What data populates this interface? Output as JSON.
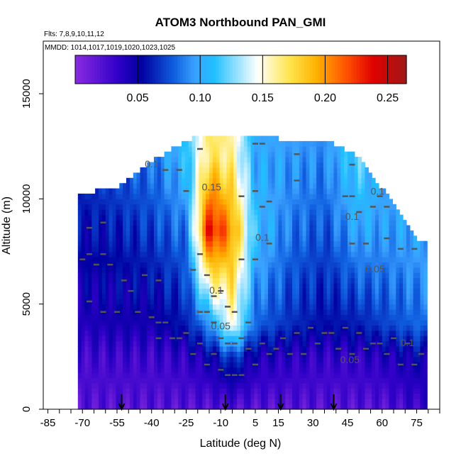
{
  "chart_data": {
    "type": "heatmap",
    "title": "ATOM3 Northbound PAN_GMI",
    "flights_label": "Flts: 7,8,9,10,11,12",
    "dates_label": "MMDD: 1014,1017,1019,1020,1023,1025",
    "xlabel": "Latitude (deg N)",
    "ylabel": "Altitude (m)",
    "xlim": [
      -87,
      85
    ],
    "ylim": [
      0,
      17500
    ],
    "x_ticks": [
      "-85",
      "-70",
      "-55",
      "-40",
      "-25",
      "-10",
      "5",
      "15",
      "30",
      "45",
      "60",
      "75"
    ],
    "y_ticks": [
      "0",
      "5000",
      "10000",
      "15000"
    ],
    "colorbar": {
      "min": 0.0,
      "max": 0.265,
      "ticks": [
        "0.05",
        "0.10",
        "0.15",
        "0.20",
        "0.25"
      ],
      "tick_values": [
        0.05,
        0.1,
        0.15,
        0.2,
        0.25
      ],
      "colors": [
        "#8a2be2",
        "#3000c8",
        "#0000a0",
        "#1060e0",
        "#3aa0ff",
        "#20c0ff",
        "#ffffff",
        "#ffe44a",
        "#ffb000",
        "#ff5000",
        "#e00000",
        "#a01818"
      ],
      "color_positions": [
        0.0,
        0.13,
        0.2,
        0.3,
        0.36,
        0.42,
        0.55,
        0.65,
        0.73,
        0.82,
        0.9,
        1.0
      ]
    },
    "contour_labels": [
      {
        "text": "0.1",
        "lat": -40,
        "alt": 11500
      },
      {
        "text": "0.15",
        "lat": -14,
        "alt": 10400
      },
      {
        "text": "0.1",
        "lat": -12,
        "alt": 5500
      },
      {
        "text": "0.05",
        "lat": -10,
        "alt": 3800
      },
      {
        "text": "0.1",
        "lat": 8,
        "alt": 8000
      },
      {
        "text": "0.1",
        "lat": 47,
        "alt": 9000
      },
      {
        "text": "0.1",
        "lat": 58,
        "alt": 10200
      },
      {
        "text": "0.05",
        "lat": 57,
        "alt": 6500
      },
      {
        "text": "0.05",
        "lat": 46,
        "alt": 2200
      },
      {
        "text": "0.1",
        "lat": 71,
        "alt": 3000
      }
    ],
    "flight_markers_lat": [
      -53,
      -8,
      16,
      39
    ],
    "series": [
      {
        "values_by_lat": [
          {
            "lat": -70,
            "alt_top": 10300,
            "surface": 0.02,
            "lower": 0.04,
            "mid": 0.055,
            "upper": 0.07
          },
          {
            "lat": -55,
            "alt_top": 10500,
            "surface": 0.02,
            "lower": 0.045,
            "mid": 0.06,
            "upper": 0.08
          },
          {
            "lat": -40,
            "alt_top": 11800,
            "surface": 0.02,
            "lower": 0.045,
            "mid": 0.07,
            "upper": 0.085
          },
          {
            "lat": -25,
            "alt_top": 12800,
            "surface": 0.02,
            "lower": 0.06,
            "mid": 0.085,
            "upper": 0.11
          },
          {
            "lat": -15,
            "alt_top": 13100,
            "surface": 0.02,
            "lower": 0.09,
            "mid": 0.24,
            "upper": 0.17
          },
          {
            "lat": -5,
            "alt_top": 13100,
            "surface": 0.02,
            "lower": 0.15,
            "mid": 0.2,
            "upper": 0.16
          },
          {
            "lat": 5,
            "alt_top": 13000,
            "surface": 0.02,
            "lower": 0.08,
            "mid": 0.11,
            "upper": 0.1
          },
          {
            "lat": 20,
            "alt_top": 12800,
            "surface": 0.02,
            "lower": 0.065,
            "mid": 0.085,
            "upper": 0.095
          },
          {
            "lat": 35,
            "alt_top": 12800,
            "surface": 0.02,
            "lower": 0.055,
            "mid": 0.075,
            "upper": 0.09
          },
          {
            "lat": 50,
            "alt_top": 12000,
            "surface": 0.02,
            "lower": 0.06,
            "mid": 0.1,
            "upper": 0.12
          },
          {
            "lat": 60,
            "alt_top": 10500,
            "surface": 0.02,
            "lower": 0.07,
            "mid": 0.095,
            "upper": 0.1
          },
          {
            "lat": 75,
            "alt_top": 8000,
            "surface": 0.03,
            "lower": 0.08,
            "mid": 0.1,
            "upper": 0.1
          }
        ]
      }
    ],
    "grid": false,
    "legend": "top-colorbar"
  }
}
